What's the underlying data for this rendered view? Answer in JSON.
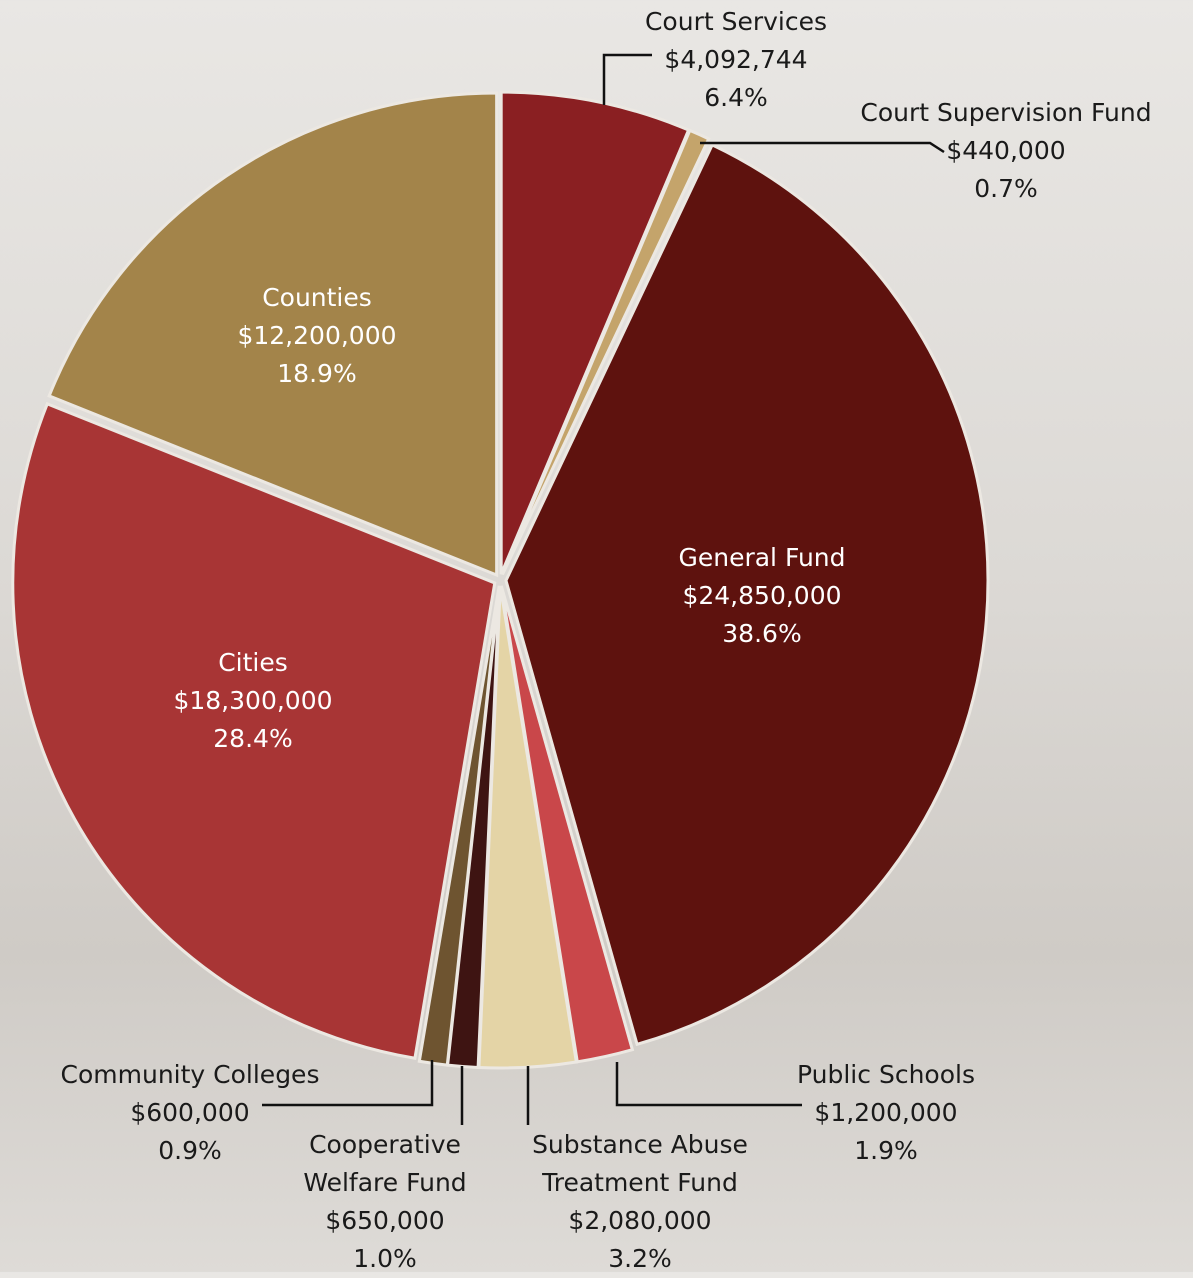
{
  "chart_data": {
    "type": "pie",
    "categories": [
      "Court Services",
      "Court Supervision Fund",
      "General Fund",
      "Public Schools",
      "Substance Abuse Treatment Fund",
      "Cooperative Welfare Fund",
      "Community Colleges",
      "Cities",
      "Counties"
    ],
    "values": [
      4092744,
      440000,
      24850000,
      1200000,
      2080000,
      650000,
      600000,
      18300000,
      12200000
    ],
    "value_labels": [
      "$4,092,744",
      "$440,000",
      "$24,850,000",
      "$1,200,000",
      "$2,080,000",
      "$650,000",
      "$600,000",
      "$18,300,000",
      "$12,200,000"
    ],
    "percents": [
      6.4,
      0.7,
      38.6,
      1.9,
      3.2,
      1.0,
      0.9,
      28.4,
      18.9
    ],
    "percent_labels": [
      "6.4%",
      "0.7%",
      "38.6%",
      "1.9%",
      "3.2%",
      "1.0%",
      "0.9%",
      "28.4%",
      "18.9%"
    ],
    "colors": [
      "#8a1f22",
      "#c4a46b",
      "#5e120e",
      "#c9474a",
      "#e4d4a6",
      "#3e1412",
      "#6e5430",
      "#a83535",
      "#a3844a"
    ]
  }
}
